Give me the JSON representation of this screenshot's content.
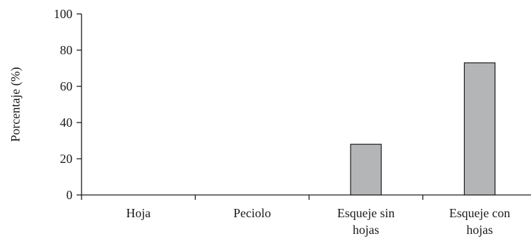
{
  "chart_data": {
    "type": "bar",
    "title": "",
    "xlabel": "",
    "ylabel": "Porcentaje (%)",
    "ylim": [
      0,
      100
    ],
    "yticks": [
      0,
      20,
      40,
      60,
      80,
      100
    ],
    "categories": [
      [
        "Hoja"
      ],
      [
        "Peciolo"
      ],
      [
        "Esqueje sin",
        "hojas"
      ],
      [
        "Esqueje con",
        "hojas"
      ]
    ],
    "values": [
      0,
      0,
      28,
      73
    ],
    "bar_color": "#b3b5b6",
    "grid": false,
    "legend": "none"
  }
}
